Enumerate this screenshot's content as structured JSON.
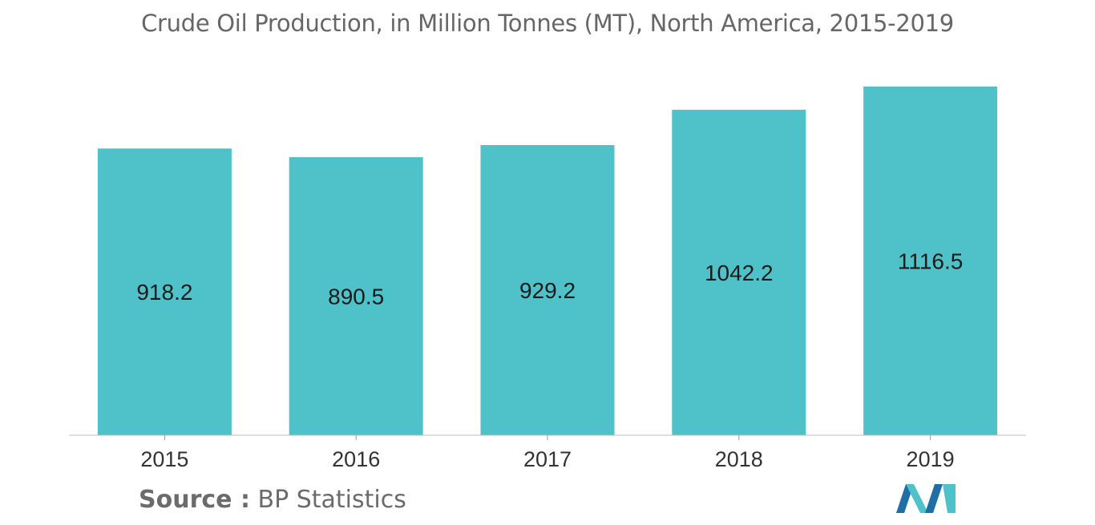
{
  "chart_data": {
    "type": "bar",
    "title": "Crude Oil Production, in Million Tonnes (MT), North America, 2015-2019",
    "categories": [
      "2015",
      "2016",
      "2017",
      "2018",
      "2019"
    ],
    "values": [
      918.2,
      890.5,
      929.2,
      1042.2,
      1116.5
    ],
    "value_labels": [
      "918.2",
      "890.5",
      "929.2",
      "1042.2",
      "1116.5"
    ],
    "xlabel": "",
    "ylabel": "",
    "ylim": [
      0,
      1116.5
    ],
    "grid": false,
    "legend": "none",
    "bar_color": "#4fc2c9",
    "label_position": "inside-center"
  },
  "source": {
    "label": "Source :",
    "value": "BP Statistics"
  },
  "logo": {
    "icon": "mordor-intelligence-logo-icon",
    "colors": [
      "#1f6fa5",
      "#4fc2c9"
    ]
  }
}
